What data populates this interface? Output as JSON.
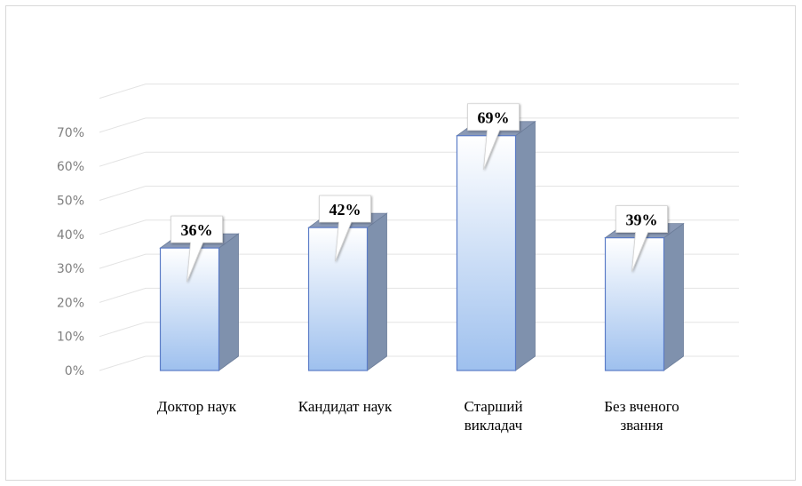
{
  "chart_data": {
    "type": "bar",
    "title": "",
    "xlabel": "",
    "ylabel": "",
    "categories": [
      "Доктор наук",
      "Кандидат наук",
      "Старший викладач",
      "Без вченого звання"
    ],
    "category_lines": [
      [
        "Доктор наук"
      ],
      [
        "Кандидат наук"
      ],
      [
        "Старший",
        "викладач"
      ],
      [
        "Без вченого",
        "звання"
      ]
    ],
    "values": [
      36,
      42,
      69,
      39
    ],
    "value_labels": [
      "36%",
      "42%",
      "69%",
      "39%"
    ],
    "ylim": [
      0,
      80
    ],
    "yticks": [
      0,
      10,
      20,
      30,
      40,
      50,
      60,
      70
    ],
    "ytick_labels": [
      "0%",
      "10%",
      "20%",
      "30%",
      "40%",
      "50%",
      "60%",
      "70%"
    ],
    "grid": true,
    "legend": "none",
    "style": "3d-column",
    "colors": {
      "bar_top": "#ffffff",
      "bar_bottom": "#9ec0ee",
      "bar_side": "#7f91ad",
      "bar_cap": "#8a99b5",
      "bar_edge": "#5b7cc7",
      "grid": "#e3e3e3"
    }
  }
}
